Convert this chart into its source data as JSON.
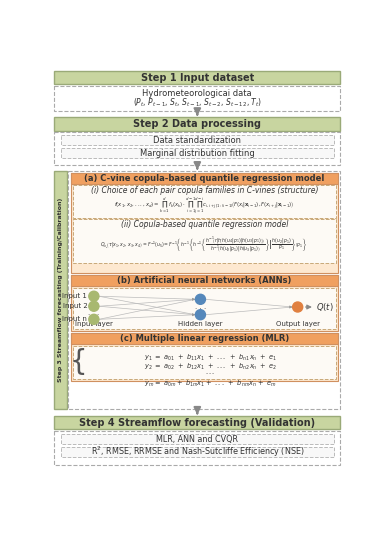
{
  "bg_color": "#ffffff",
  "step_header_color": "#c8d5a0",
  "step_header_edge": "#9aaa78",
  "orange_header_color": "#f0a060",
  "orange_box_color": "#fde8d0",
  "inner_box_color": "#fdfaf5",
  "side_label_color": "#c8d5a0",
  "step1_title": "Step 1 Input dataset",
  "step2_title": "Step 2 Data processing",
  "step2_items": [
    "Data standardization",
    "Marginal distribution fitting"
  ],
  "step3_side": "Step 3 Streamflow forecasting (Training/Calibration)",
  "step3a_title": "(a) C-vine copula-based quantile regression model",
  "step3a_i_title": "(i) Choice of each pair copula families in C-vines (structure)",
  "step3a_ii_title": "(ii) Copula-based quantile regression model",
  "step3b_title": "(b) Artificial neural networks (ANNs)",
  "step3c_title": "(c) Multiple linear regression (MLR)",
  "step4_title": "Step 4 Streamflow forecasting (Validation)",
  "step4_items": [
    "MLR, ANN and CVQR",
    "R$^2$, RMSE, RRMSE and Nash-Sutcliffe Efficiency (NSE)"
  ]
}
